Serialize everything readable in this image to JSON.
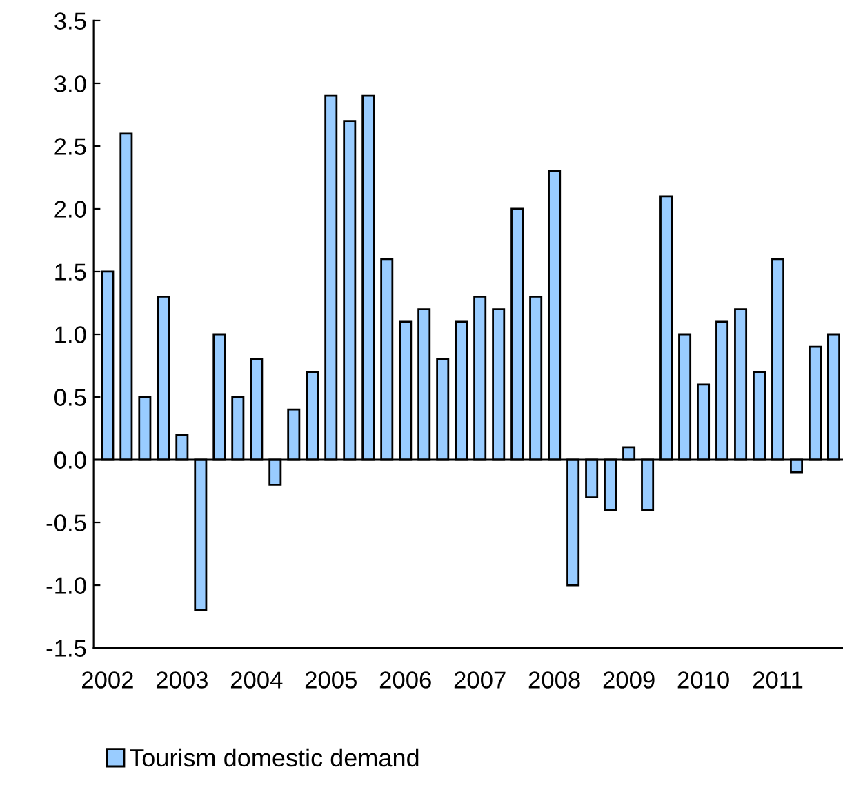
{
  "chart_data": {
    "type": "bar",
    "categories": [
      "2002",
      null,
      null,
      null,
      "2003",
      null,
      null,
      null,
      "2004",
      null,
      null,
      null,
      "2005",
      null,
      null,
      null,
      "2006",
      null,
      null,
      null,
      "2007",
      null,
      null,
      null,
      "2008",
      null,
      null,
      null,
      "2009",
      null,
      null,
      null,
      "2010",
      null,
      null,
      null,
      "2011",
      null,
      null,
      null
    ],
    "series": [
      {
        "name": "Tourism domestic demand",
        "color": "#99ccff",
        "values": [
          1.5,
          2.6,
          0.5,
          1.3,
          0.2,
          -1.2,
          1.0,
          0.5,
          0.8,
          -0.2,
          0.4,
          0.7,
          2.9,
          2.7,
          2.9,
          1.6,
          1.1,
          1.2,
          0.8,
          1.1,
          1.3,
          1.2,
          2.0,
          1.3,
          2.3,
          -1.0,
          -0.3,
          -0.4,
          0.1,
          -0.4,
          2.1,
          1.0,
          0.6,
          1.1,
          1.2,
          0.7,
          1.6,
          -0.1,
          0.9,
          1.0
        ]
      }
    ],
    "ylim": [
      -1.5,
      3.5
    ],
    "yticks": [
      {
        "value": -1.5,
        "label": "-1.5"
      },
      {
        "value": -1.0,
        "label": "-1.0"
      },
      {
        "value": -0.5,
        "label": "-0.5"
      },
      {
        "value": 0,
        "label": "0.0"
      },
      {
        "value": 0.5,
        "label": "0.5"
      },
      {
        "value": 1.0,
        "label": "1.0"
      },
      {
        "value": 1.5,
        "label": "1.5"
      },
      {
        "value": 2.0,
        "label": "2.0"
      },
      {
        "value": 2.5,
        "label": "2.5"
      },
      {
        "value": 3.0,
        "label": "3.0"
      },
      {
        "value": 3.5,
        "label": "3.5"
      }
    ],
    "ref_lines": [
      {
        "axis": "y",
        "value": 0,
        "color": "#000000"
      }
    ],
    "legend": "bottom left"
  }
}
